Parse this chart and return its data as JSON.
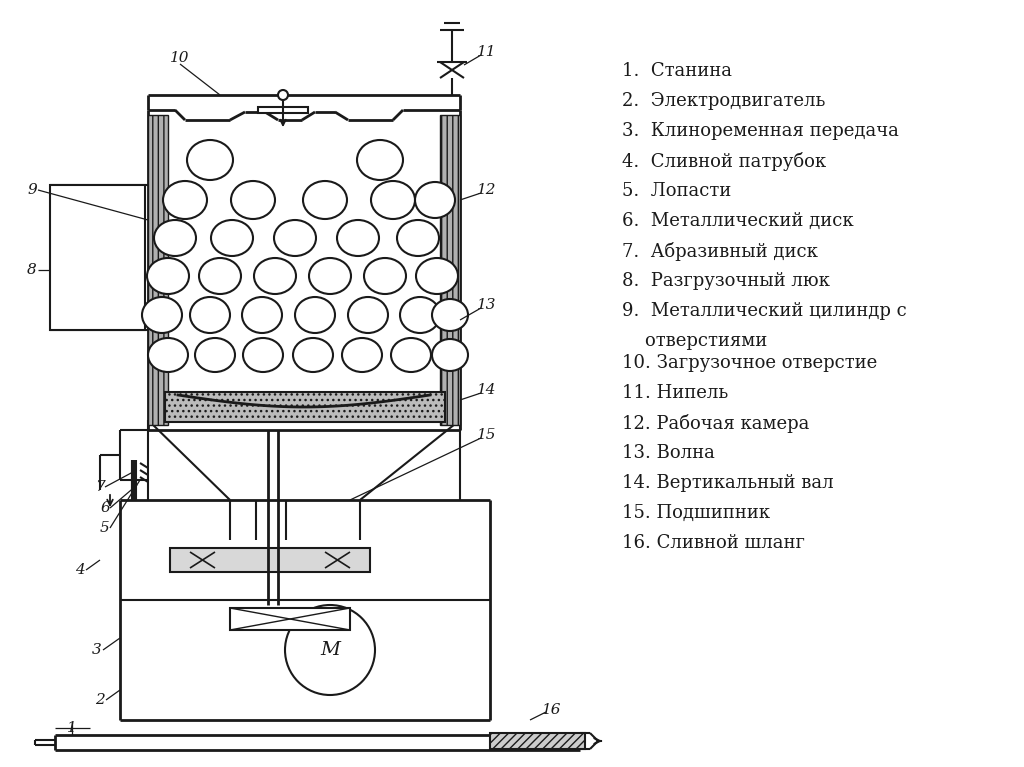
{
  "bg_color": "#ffffff",
  "line_color": "#1a1a1a",
  "label_color": "#1a1a1a",
  "parts": [
    "1.  Станина",
    "2.  Электродвигатель",
    "3.  Клиноременная передача",
    "4.  Сливной патрубок",
    "5.  Лопасти",
    "6.  Металлический диск",
    "7.  Абразивный диск",
    "8.  Разгрузочный люк",
    "9.  Металлический цилиндр с",
    "    отверстиями",
    "10. Загрузочное отверстие",
    "11. Нипель",
    "12. Рабочая камера",
    "13. Волна",
    "14. Вертикальный вал",
    "15. Подшипник",
    "16. Сливной шланг"
  ]
}
